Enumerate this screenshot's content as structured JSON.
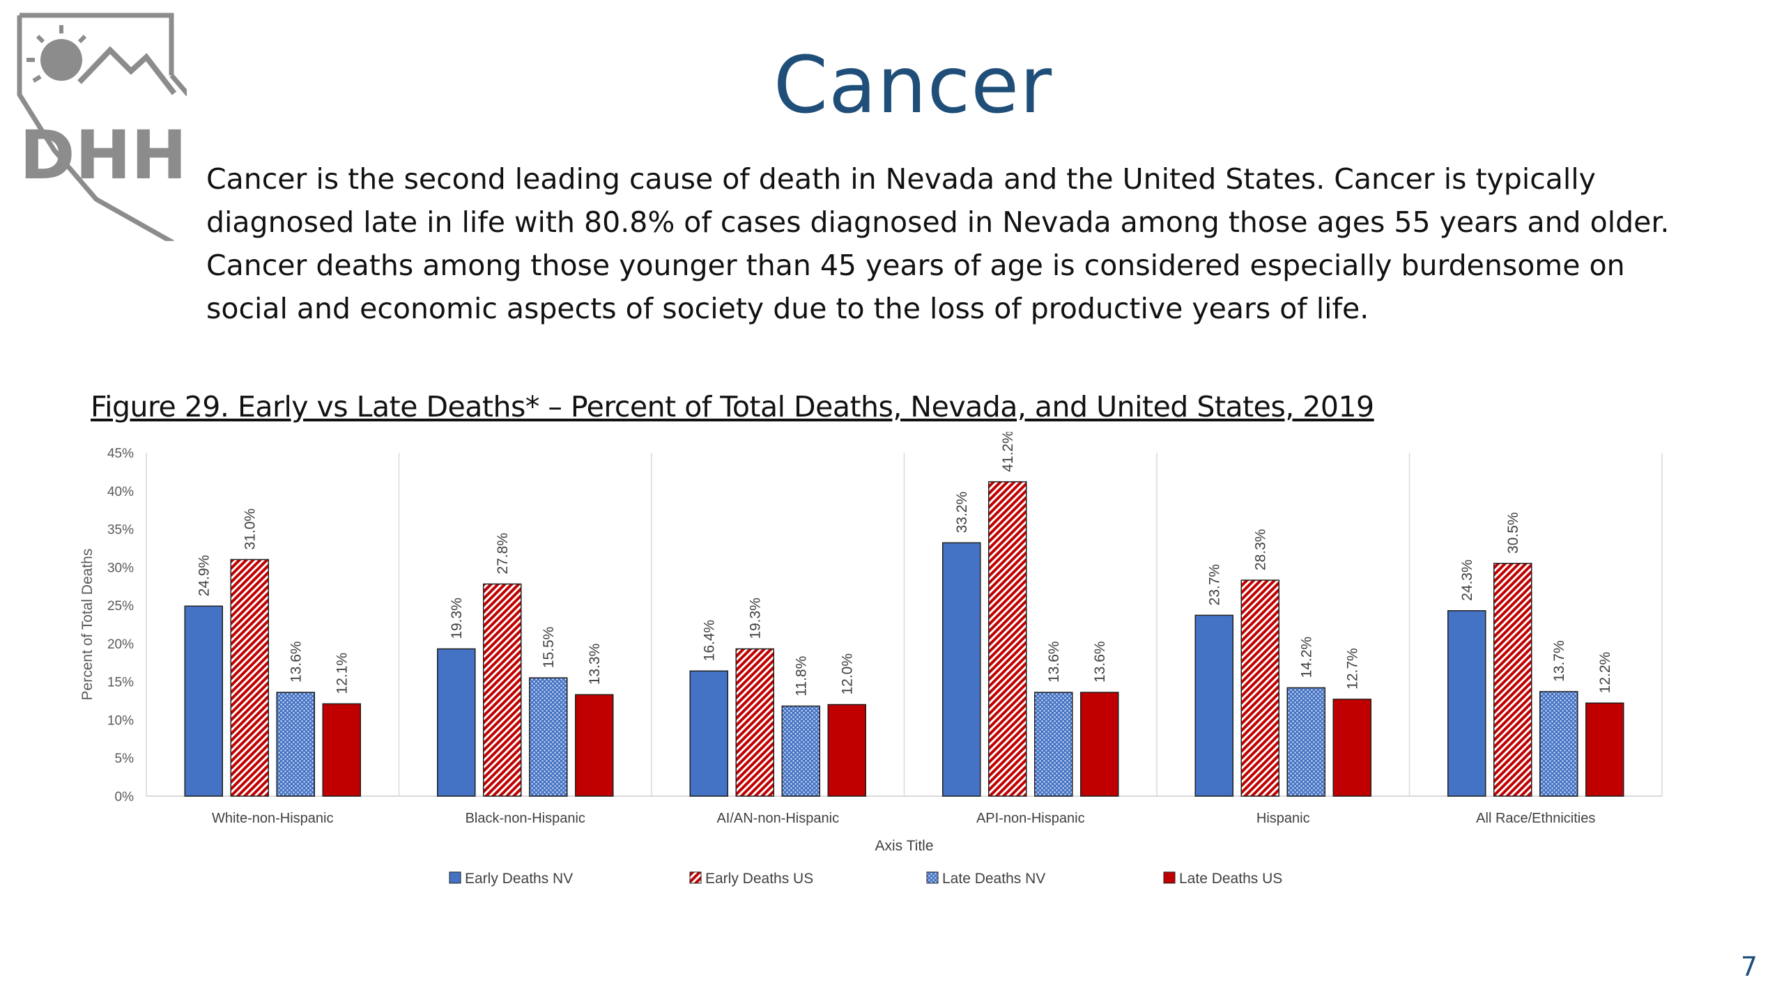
{
  "slide": {
    "title": "Cancer",
    "intro": "Cancer is the second leading cause of death in Nevada and the United States. Cancer is typically diagnosed late in life with 80.8% of cases diagnosed in Nevada among those ages 55 years and older. Cancer deaths among those younger than 45 years of age is considered especially burdensome on social and economic aspects of society due to the loss of productive years of life.",
    "figure_title": "Figure 29. Early vs Late Deaths* – Percent of Total Deaths, Nevada, and United States, 2019",
    "page_number": "7"
  },
  "logo": {
    "letters": "DHHS",
    "colors": {
      "gray": "#8c8c8c"
    }
  },
  "chart_data": {
    "type": "bar",
    "title": "",
    "xlabel": "Axis Title",
    "ylabel": "Percent of Total Deaths",
    "ylim": [
      0,
      45
    ],
    "yticks": [
      "0%",
      "5%",
      "10%",
      "15%",
      "20%",
      "25%",
      "30%",
      "35%",
      "40%",
      "45%"
    ],
    "categories": [
      "White-non-Hispanic",
      "Black-non-Hispanic",
      "AI/AN-non-Hispanic",
      "API-non-Hispanic",
      "Hispanic",
      "All Race/Ethnicities"
    ],
    "series": [
      {
        "name": "Early Deaths NV",
        "values": [
          24.9,
          19.3,
          16.4,
          33.2,
          23.7,
          24.3
        ],
        "labels": [
          "24.9%",
          "19.3%",
          "16.4%",
          "33.2%",
          "23.7%",
          "24.3%"
        ],
        "color": "#4472c4",
        "pattern": "solid"
      },
      {
        "name": "Early Deaths US",
        "values": [
          31.0,
          27.8,
          19.3,
          41.2,
          28.3,
          30.5
        ],
        "labels": [
          "31.0%",
          "27.8%",
          "19.3%",
          "41.2%",
          "28.3%",
          "30.5%"
        ],
        "color": "#c00000",
        "pattern": "diagonal"
      },
      {
        "name": "Late Deaths NV",
        "values": [
          13.6,
          15.5,
          11.8,
          13.6,
          14.2,
          13.7
        ],
        "labels": [
          "13.6%",
          "15.5%",
          "11.8%",
          "13.6%",
          "14.2%",
          "13.7%"
        ],
        "color": "#4472c4",
        "pattern": "dots"
      },
      {
        "name": "Late Deaths US",
        "values": [
          12.1,
          13.3,
          12.0,
          13.6,
          12.7,
          12.2
        ],
        "labels": [
          "12.1%",
          "13.3%",
          "12.0%",
          "13.6%",
          "12.7%",
          "12.2%"
        ],
        "color": "#c00000",
        "pattern": "solid"
      }
    ],
    "legend": "bottom",
    "grid": "vertical category separators"
  }
}
